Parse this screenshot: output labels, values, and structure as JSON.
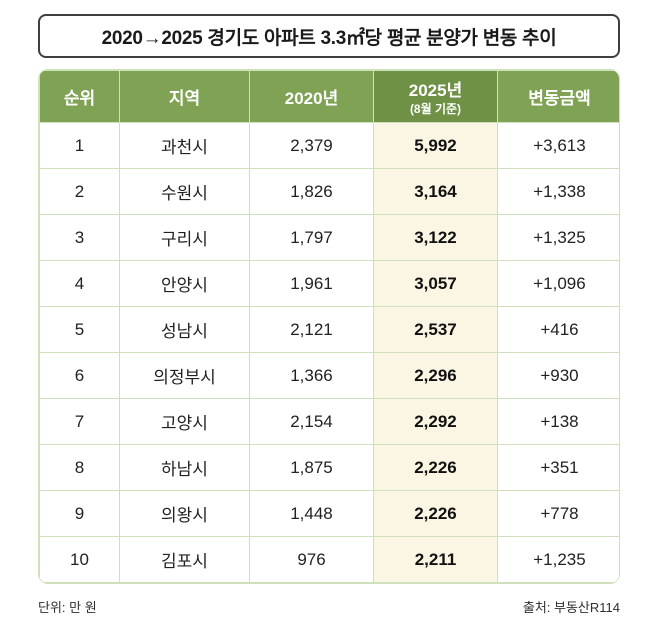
{
  "title": "2020→2025 경기도 아파트 3.3㎡당 평균 분양가 변동 추이",
  "table": {
    "headers": [
      "순위",
      "지역",
      "2020년",
      "2025년",
      "변동금액"
    ],
    "header_2025_sub": "(8월 기준)",
    "rows": [
      [
        "1",
        "과천시",
        "2,379",
        "5,992",
        "+3,613"
      ],
      [
        "2",
        "수원시",
        "1,826",
        "3,164",
        "+1,338"
      ],
      [
        "3",
        "구리시",
        "1,797",
        "3,122",
        "+1,325"
      ],
      [
        "4",
        "안양시",
        "1,961",
        "3,057",
        "+1,096"
      ],
      [
        "5",
        "성남시",
        "2,121",
        "2,537",
        "+416"
      ],
      [
        "6",
        "의정부시",
        "1,366",
        "2,296",
        "+930"
      ],
      [
        "7",
        "고양시",
        "2,154",
        "2,292",
        "+138"
      ],
      [
        "8",
        "하남시",
        "1,875",
        "2,226",
        "+351"
      ],
      [
        "9",
        "의왕시",
        "1,448",
        "2,226",
        "+778"
      ],
      [
        "10",
        "김포시",
        "976",
        "2,211",
        "+1,235"
      ]
    ]
  },
  "footer": {
    "left": "단위: 만 원",
    "right": "출처: 부동산R114"
  },
  "colors": {
    "header_green": "#7fa254",
    "header_green_dark": "#6e9146",
    "highlight_cream": "#faf6e3",
    "border_green": "#cfe0bc",
    "title_border": "#3f3f3f"
  },
  "chart_data": {
    "type": "table",
    "title": "2020→2025 경기도 아파트 3.3㎡당 평균 분양가 변동 추이",
    "columns": [
      "순위",
      "지역",
      "2020년",
      "2025년(8월 기준)",
      "변동금액"
    ],
    "rows": [
      [
        1,
        "과천시",
        2379,
        5992,
        3613
      ],
      [
        2,
        "수원시",
        1826,
        3164,
        1338
      ],
      [
        3,
        "구리시",
        1797,
        3122,
        1325
      ],
      [
        4,
        "안양시",
        1961,
        3057,
        1096
      ],
      [
        5,
        "성남시",
        2121,
        2537,
        416
      ],
      [
        6,
        "의정부시",
        1366,
        2296,
        930
      ],
      [
        7,
        "고양시",
        2154,
        2292,
        138
      ],
      [
        8,
        "하남시",
        1875,
        2226,
        351
      ],
      [
        9,
        "의왕시",
        1448,
        2226,
        778
      ],
      [
        10,
        "김포시",
        976,
        2211,
        1235
      ]
    ],
    "unit": "만 원",
    "source": "부동산R114"
  }
}
